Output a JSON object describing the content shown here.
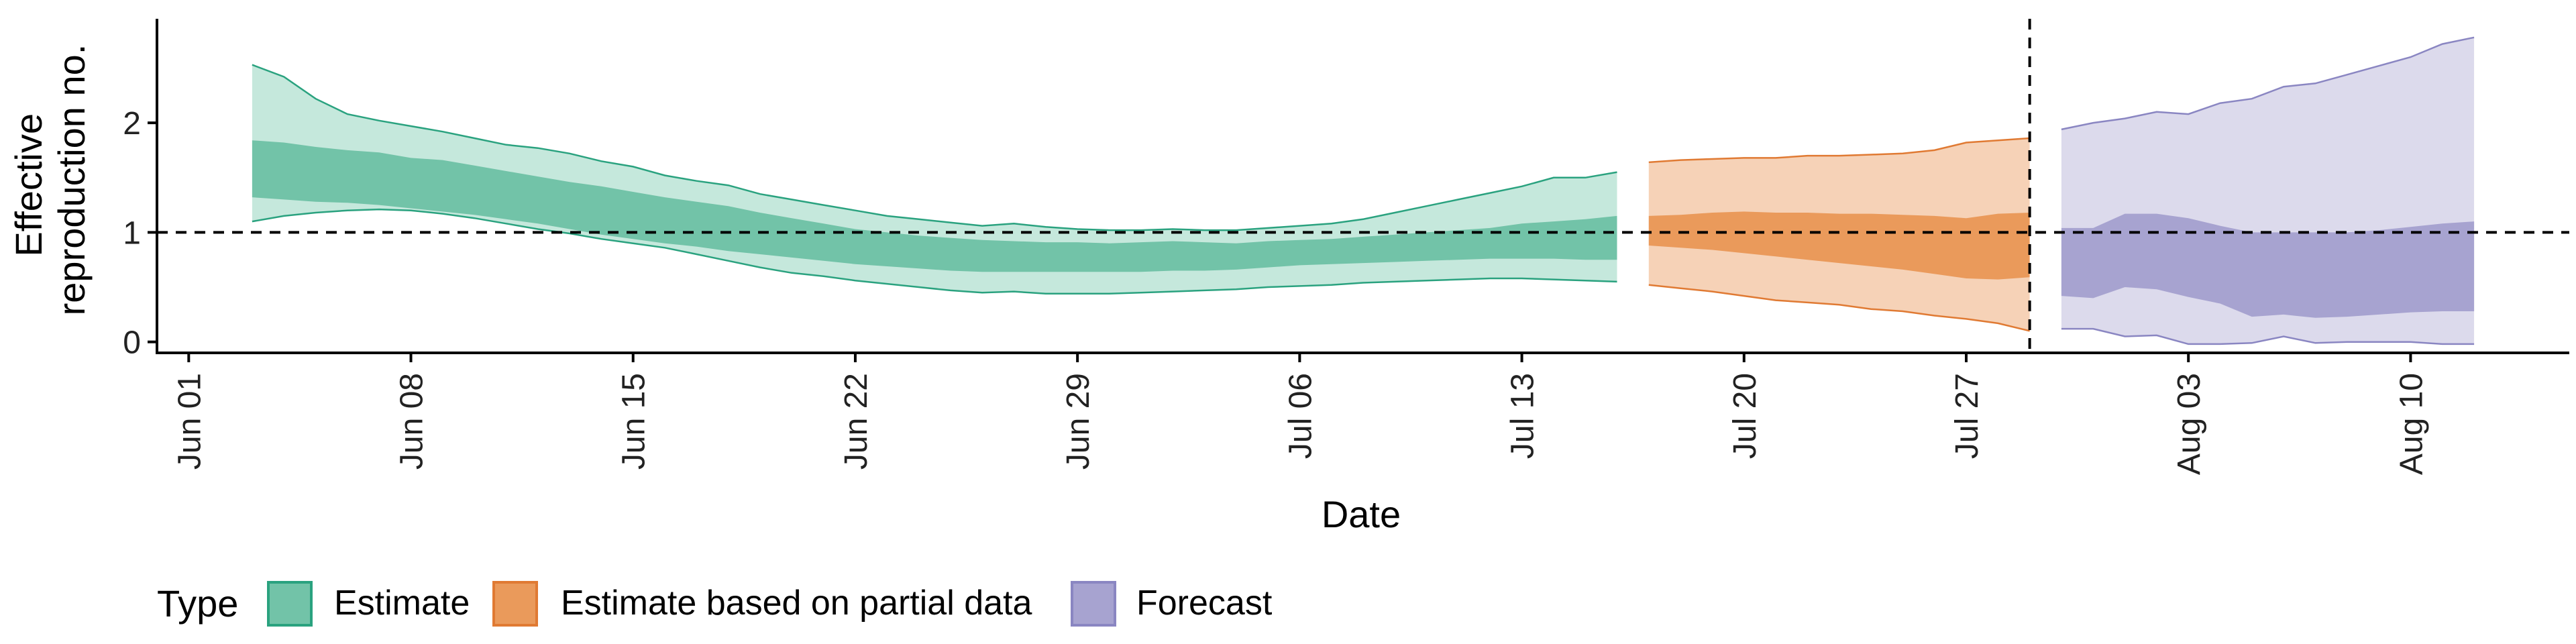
{
  "chart_data": {
    "type": "area",
    "xlabel": "Date",
    "ylabel_lines": [
      "Effective",
      "reproduction no."
    ],
    "x_ticks": [
      "2020-06-01",
      "2020-06-08",
      "2020-06-15",
      "2020-06-22",
      "2020-06-29",
      "2020-07-06",
      "2020-07-13",
      "2020-07-20",
      "2020-07-27",
      "2020-08-03",
      "2020-08-10"
    ],
    "x_tick_labels": [
      "Jun 01",
      "Jun 08",
      "Jun 15",
      "Jun 22",
      "Jun 29",
      "Jul 06",
      "Jul 13",
      "Jul 20",
      "Jul 27",
      "Aug 03",
      "Aug 10"
    ],
    "xlim": [
      "2020-05-31",
      "2020-08-15"
    ],
    "y_ticks": [
      0,
      1,
      2
    ],
    "ylim": [
      -0.1,
      2.95
    ],
    "reference_line_y": 1,
    "reference_line_x": "2020-07-29",
    "grid": false,
    "legend": {
      "title": "Type",
      "position": "bottom-left",
      "entries": [
        "Estimate",
        "Estimate based on partial data",
        "Forecast"
      ]
    },
    "series": [
      {
        "name": "Estimate",
        "color": "#1b9e77",
        "outer_fill": "#c5e8dc",
        "inner_fill": "#72c3a8",
        "stroke": "#2aa27f",
        "x": [
          "2020-06-03",
          "2020-06-04",
          "2020-06-05",
          "2020-06-06",
          "2020-06-07",
          "2020-06-08",
          "2020-06-09",
          "2020-06-10",
          "2020-06-11",
          "2020-06-12",
          "2020-06-13",
          "2020-06-14",
          "2020-06-15",
          "2020-06-16",
          "2020-06-17",
          "2020-06-18",
          "2020-06-19",
          "2020-06-20",
          "2020-06-21",
          "2020-06-22",
          "2020-06-23",
          "2020-06-24",
          "2020-06-25",
          "2020-06-26",
          "2020-06-27",
          "2020-06-28",
          "2020-06-29",
          "2020-06-30",
          "2020-07-01",
          "2020-07-02",
          "2020-07-03",
          "2020-07-04",
          "2020-07-05",
          "2020-07-06",
          "2020-07-07",
          "2020-07-08",
          "2020-07-09",
          "2020-07-10",
          "2020-07-11",
          "2020-07-12",
          "2020-07-13",
          "2020-07-14",
          "2020-07-15",
          "2020-07-16"
        ],
        "upper90": [
          2.53,
          2.42,
          2.22,
          2.08,
          2.02,
          1.97,
          1.92,
          1.86,
          1.8,
          1.77,
          1.72,
          1.65,
          1.6,
          1.52,
          1.47,
          1.43,
          1.35,
          1.3,
          1.25,
          1.2,
          1.15,
          1.12,
          1.09,
          1.06,
          1.08,
          1.05,
          1.03,
          1.02,
          1.02,
          1.03,
          1.02,
          1.02,
          1.04,
          1.06,
          1.08,
          1.12,
          1.18,
          1.24,
          1.3,
          1.36,
          1.42,
          1.5,
          1.5,
          1.55
        ],
        "upper50": [
          1.84,
          1.82,
          1.78,
          1.75,
          1.73,
          1.68,
          1.66,
          1.61,
          1.56,
          1.51,
          1.46,
          1.42,
          1.37,
          1.32,
          1.28,
          1.24,
          1.18,
          1.13,
          1.08,
          1.03,
          1.0,
          0.97,
          0.95,
          0.93,
          0.92,
          0.91,
          0.91,
          0.9,
          0.91,
          0.92,
          0.91,
          0.9,
          0.92,
          0.93,
          0.94,
          0.96,
          0.98,
          1.0,
          1.02,
          1.04,
          1.08,
          1.1,
          1.12,
          1.15
        ],
        "lower50": [
          1.32,
          1.3,
          1.28,
          1.27,
          1.25,
          1.22,
          1.19,
          1.16,
          1.12,
          1.08,
          1.03,
          0.98,
          0.94,
          0.9,
          0.87,
          0.83,
          0.8,
          0.77,
          0.74,
          0.71,
          0.69,
          0.67,
          0.65,
          0.64,
          0.64,
          0.64,
          0.64,
          0.64,
          0.64,
          0.65,
          0.65,
          0.66,
          0.68,
          0.7,
          0.71,
          0.72,
          0.73,
          0.74,
          0.75,
          0.76,
          0.76,
          0.76,
          0.75,
          0.75
        ],
        "lower90": [
          1.1,
          1.15,
          1.18,
          1.2,
          1.21,
          1.2,
          1.17,
          1.13,
          1.08,
          1.03,
          0.99,
          0.94,
          0.9,
          0.86,
          0.8,
          0.74,
          0.68,
          0.63,
          0.6,
          0.56,
          0.53,
          0.5,
          0.47,
          0.45,
          0.46,
          0.44,
          0.44,
          0.44,
          0.45,
          0.46,
          0.47,
          0.48,
          0.5,
          0.51,
          0.52,
          0.54,
          0.55,
          0.56,
          0.57,
          0.58,
          0.58,
          0.57,
          0.56,
          0.55
        ]
      },
      {
        "name": "Estimate based on partial data",
        "color": "#d95f02",
        "outer_fill": "#f6d2b7",
        "inner_fill": "#ea9a5b",
        "stroke": "#e07a33",
        "x": [
          "2020-07-17",
          "2020-07-18",
          "2020-07-19",
          "2020-07-20",
          "2020-07-21",
          "2020-07-22",
          "2020-07-23",
          "2020-07-24",
          "2020-07-25",
          "2020-07-26",
          "2020-07-27",
          "2020-07-28",
          "2020-07-29"
        ],
        "upper90": [
          1.64,
          1.66,
          1.67,
          1.68,
          1.68,
          1.7,
          1.7,
          1.71,
          1.72,
          1.75,
          1.82,
          1.84,
          1.86
        ],
        "upper50": [
          1.15,
          1.16,
          1.18,
          1.19,
          1.18,
          1.18,
          1.17,
          1.17,
          1.16,
          1.15,
          1.13,
          1.17,
          1.18
        ],
        "lower50": [
          0.88,
          0.86,
          0.84,
          0.81,
          0.78,
          0.75,
          0.72,
          0.69,
          0.66,
          0.62,
          0.58,
          0.57,
          0.59
        ],
        "lower90": [
          0.52,
          0.49,
          0.46,
          0.42,
          0.38,
          0.36,
          0.34,
          0.3,
          0.28,
          0.24,
          0.21,
          0.17,
          0.1
        ]
      },
      {
        "name": "Forecast",
        "color": "#7570b3",
        "outer_fill": "#dcdaec",
        "inner_fill": "#a7a3d0",
        "stroke": "#8a86c2",
        "x": [
          "2020-07-30",
          "2020-07-31",
          "2020-08-01",
          "2020-08-02",
          "2020-08-03",
          "2020-08-04",
          "2020-08-05",
          "2020-08-06",
          "2020-08-07",
          "2020-08-08",
          "2020-08-09",
          "2020-08-10",
          "2020-08-11",
          "2020-08-12"
        ],
        "upper90": [
          1.94,
          2.0,
          2.04,
          2.1,
          2.08,
          2.18,
          2.22,
          2.33,
          2.36,
          2.44,
          2.52,
          2.6,
          2.72,
          2.78
        ],
        "upper50": [
          1.04,
          1.04,
          1.17,
          1.17,
          1.13,
          1.06,
          1.0,
          1.0,
          1.0,
          1.0,
          1.02,
          1.05,
          1.08,
          1.1
        ],
        "lower50": [
          0.42,
          0.4,
          0.5,
          0.48,
          0.41,
          0.35,
          0.23,
          0.25,
          0.22,
          0.23,
          0.25,
          0.27,
          0.28,
          0.28
        ],
        "lower90": [
          0.12,
          0.12,
          0.05,
          0.06,
          -0.02,
          -0.02,
          -0.01,
          0.05,
          -0.01,
          0.0,
          0.0,
          0.0,
          -0.02,
          -0.02
        ]
      }
    ]
  }
}
